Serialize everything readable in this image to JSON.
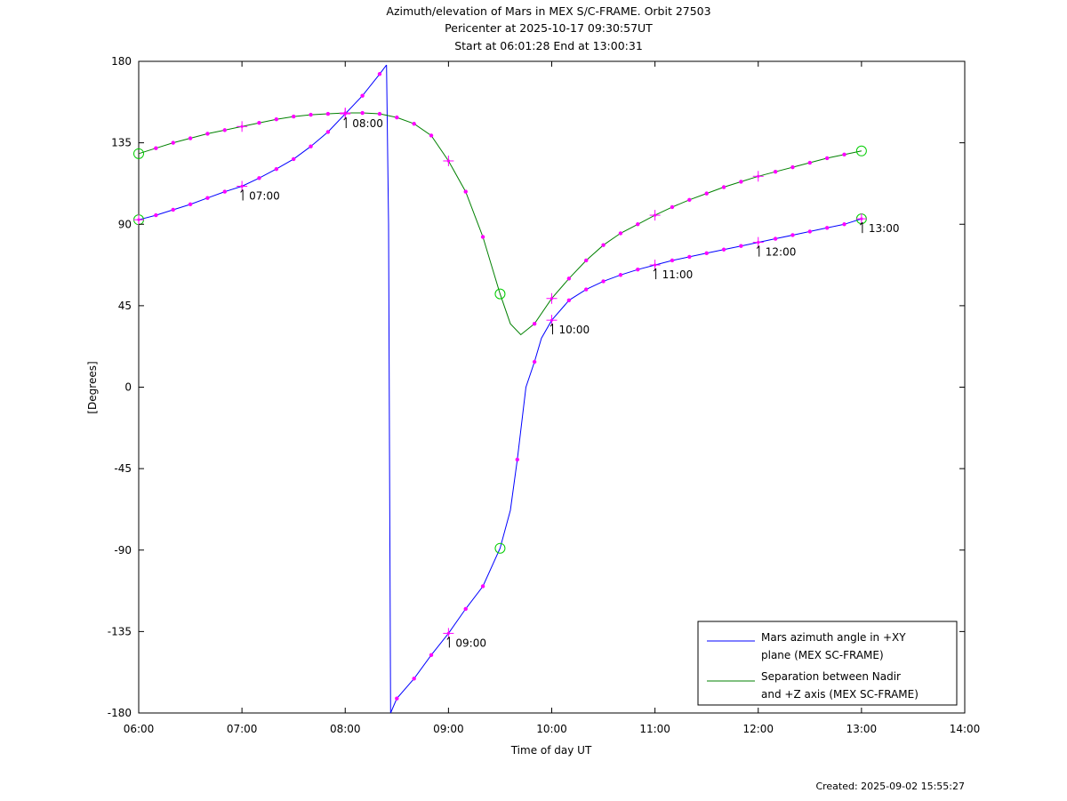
{
  "title_lines": [
    "Azimuth/elevation of Mars in MEX S/C-FRAME.  Orbit 27503",
    "Pericenter at 2025-10-17 09:30:57UT",
    "Start at 06:01:28 End at 13:00:31"
  ],
  "created": "Created: 2025-09-02 15:55:27",
  "chart_data": {
    "type": "line",
    "title": "Azimuth/elevation of Mars in MEX S/C-FRAME.  Orbit 27503",
    "xlabel": "Time of day UT",
    "ylabel": "[Degrees]",
    "xlim": [
      6,
      14
    ],
    "ylim": [
      -180,
      180
    ],
    "x_ticks": [
      6,
      7,
      8,
      9,
      10,
      11,
      12,
      13,
      14
    ],
    "x_tick_labels": [
      "06:00",
      "07:00",
      "08:00",
      "09:00",
      "10:00",
      "11:00",
      "12:00",
      "13:00",
      "14:00"
    ],
    "y_ticks": [
      180,
      135,
      90,
      45,
      0,
      -45,
      -90,
      -135,
      -180
    ],
    "y_tick_labels": [
      "180",
      "135",
      "90",
      "45",
      "0",
      "-45",
      "-90",
      "-135",
      "-180"
    ],
    "grid": false,
    "legend_position": "bottom-right",
    "series": [
      {
        "name": "Mars azimuth angle in +XY plane (MEX SC-FRAME)",
        "legend_lines": [
          "Mars azimuth angle in +XY",
          "plane (MEX SC-FRAME)"
        ],
        "color": "#0000ff",
        "segments": [
          {
            "x": [
              6.0,
              6.1667,
              6.3333,
              6.5,
              6.6667,
              6.8333,
              7.0,
              7.1667,
              7.3333,
              7.5,
              7.6667,
              7.8333,
              8.0,
              8.1667,
              8.3333,
              8.4
            ],
            "y": [
              92.5,
              95,
              98,
              101,
              104.5,
              108,
              111,
              115.5,
              120.5,
              126,
              133,
              141,
              151,
              161,
              173,
              178
            ]
          },
          {
            "x": [
              8.4,
              8.42,
              8.44
            ],
            "y": [
              178,
              90,
              -180
            ]
          },
          {
            "x": [
              8.44,
              8.5,
              8.6667,
              8.8333,
              9.0,
              9.1667,
              9.3333,
              9.5,
              9.6,
              9.6667,
              9.75,
              9.8333,
              9.9,
              10.0,
              10.1667,
              10.3333,
              10.5,
              10.6667,
              10.8333,
              11.0,
              11.1667,
              11.3333,
              11.5,
              11.6667,
              11.8333,
              12.0,
              12.1667,
              12.3333,
              12.5,
              12.6667,
              12.8333,
              13.0
            ],
            "y": [
              -180,
              -172,
              -161,
              -148,
              -136,
              -122.5,
              -110,
              -89,
              -68,
              -40,
              0,
              14,
              27,
              37,
              48,
              54,
              58.5,
              62,
              65,
              67.5,
              70,
              72,
              74,
              76,
              78,
              80,
              82,
              84,
              86,
              88,
              90,
              93
            ]
          }
        ],
        "markers_star": [
          [
            6.0,
            92.5
          ],
          [
            7.0,
            111
          ],
          [
            8.0,
            151
          ],
          [
            9.0,
            -136
          ],
          [
            10.0,
            37
          ],
          [
            11.0,
            67.5
          ],
          [
            12.0,
            80
          ],
          [
            13.0,
            93
          ]
        ],
        "markers_circle": [
          [
            6.0,
            92.5
          ],
          [
            9.5,
            -89
          ],
          [
            13.0,
            93
          ]
        ],
        "dots": [
          [
            6.1667,
            95
          ],
          [
            6.3333,
            98
          ],
          [
            6.5,
            101
          ],
          [
            6.6667,
            104.5
          ],
          [
            6.8333,
            108
          ],
          [
            7.1667,
            115.5
          ],
          [
            7.3333,
            120.5
          ],
          [
            7.5,
            126
          ],
          [
            7.6667,
            133
          ],
          [
            7.8333,
            141
          ],
          [
            8.1667,
            161
          ],
          [
            8.3333,
            173
          ],
          [
            8.5,
            -172
          ],
          [
            8.6667,
            -161
          ],
          [
            8.8333,
            -148
          ],
          [
            9.1667,
            -122.5
          ],
          [
            9.3333,
            -110
          ],
          [
            9.6667,
            -40
          ],
          [
            9.8333,
            14
          ],
          [
            10.1667,
            48
          ],
          [
            10.3333,
            54
          ],
          [
            10.5,
            58.5
          ],
          [
            10.6667,
            62
          ],
          [
            10.8333,
            65
          ],
          [
            11.1667,
            70
          ],
          [
            11.3333,
            72
          ],
          [
            11.5,
            74
          ],
          [
            11.6667,
            76
          ],
          [
            11.8333,
            78
          ],
          [
            12.1667,
            82
          ],
          [
            12.3333,
            84
          ],
          [
            12.5,
            86
          ],
          [
            12.6667,
            88
          ],
          [
            12.8333,
            90
          ]
        ]
      },
      {
        "name": "Separation between Nadir and +Z axis (MEX SC-FRAME)",
        "legend_lines": [
          "Separation between Nadir",
          "and +Z axis (MEX SC-FRAME)"
        ],
        "color": "#008000",
        "segments": [
          {
            "x": [
              6.0,
              6.1667,
              6.3333,
              6.5,
              6.6667,
              6.8333,
              7.0,
              7.1667,
              7.3333,
              7.5,
              7.6667,
              7.8333,
              8.0,
              8.1667,
              8.3333,
              8.5,
              8.6667,
              8.8333,
              9.0,
              9.1667,
              9.3333,
              9.5,
              9.6,
              9.7,
              9.8333,
              10.0,
              10.1667,
              10.3333,
              10.5,
              10.6667,
              10.8333,
              11.0,
              11.1667,
              11.3333,
              11.5,
              11.6667,
              11.8333,
              12.0,
              12.1667,
              12.3333,
              12.5,
              12.6667,
              12.8333,
              13.0
            ],
            "y": [
              129,
              132,
              135,
              137.5,
              140,
              142,
              144,
              146,
              148,
              149.5,
              150.5,
              151,
              151.5,
              151.5,
              151,
              149,
              145.5,
              139,
              125,
              108,
              83,
              51.5,
              35,
              29,
              35,
              49,
              60,
              70,
              78.5,
              85,
              90,
              95,
              99.5,
              103.5,
              107,
              110.5,
              113.5,
              116.5,
              119,
              121.5,
              124,
              126.5,
              128.5,
              130.5
            ]
          }
        ],
        "markers_star": [
          [
            7.0,
            144
          ],
          [
            8.0,
            151.5
          ],
          [
            9.0,
            125
          ],
          [
            10.0,
            49
          ],
          [
            11.0,
            95
          ],
          [
            12.0,
            116.5
          ]
        ],
        "markers_circle": [
          [
            6.0,
            129
          ],
          [
            9.5,
            51.5
          ],
          [
            13.0,
            130.5
          ]
        ],
        "dots": [
          [
            6.1667,
            132
          ],
          [
            6.3333,
            135
          ],
          [
            6.5,
            137.5
          ],
          [
            6.6667,
            140
          ],
          [
            6.8333,
            142
          ],
          [
            7.1667,
            146
          ],
          [
            7.3333,
            148
          ],
          [
            7.5,
            149.5
          ],
          [
            7.6667,
            150.5
          ],
          [
            7.8333,
            151
          ],
          [
            8.1667,
            151.5
          ],
          [
            8.3333,
            151
          ],
          [
            8.5,
            149
          ],
          [
            8.6667,
            145.5
          ],
          [
            8.8333,
            139
          ],
          [
            9.1667,
            108
          ],
          [
            9.3333,
            83
          ],
          [
            9.8333,
            35
          ],
          [
            10.1667,
            60
          ],
          [
            10.3333,
            70
          ],
          [
            10.5,
            78.5
          ],
          [
            10.6667,
            85
          ],
          [
            10.8333,
            90
          ],
          [
            11.1667,
            99.5
          ],
          [
            11.3333,
            103.5
          ],
          [
            11.5,
            107
          ],
          [
            11.6667,
            110.5
          ],
          [
            11.8333,
            113.5
          ],
          [
            12.1667,
            119
          ],
          [
            12.3333,
            121.5
          ],
          [
            12.5,
            124
          ],
          [
            12.6667,
            126.5
          ],
          [
            12.8333,
            128.5
          ]
        ]
      }
    ],
    "annotations": [
      {
        "text": "07:00",
        "x": 7.0,
        "y": 111
      },
      {
        "text": "08:00",
        "x": 8.0,
        "y": 151
      },
      {
        "text": "09:00",
        "x": 9.0,
        "y": -136
      },
      {
        "text": "10:00",
        "x": 10.0,
        "y": 37
      },
      {
        "text": "11:00",
        "x": 11.0,
        "y": 67.5
      },
      {
        "text": "12:00",
        "x": 12.0,
        "y": 80
      },
      {
        "text": "13:00",
        "x": 13.0,
        "y": 93
      }
    ],
    "marker_color": "#ff00ff",
    "circle_color": "#00cc00"
  }
}
